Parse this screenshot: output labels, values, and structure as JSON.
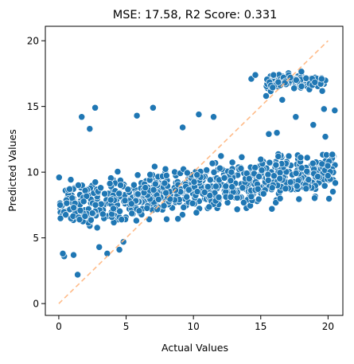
{
  "chart_data": {
    "type": "scatter",
    "title": "MSE: 17.58, R2 Score: 0.331",
    "xlabel": "Actual Values",
    "ylabel": "Predicted Values",
    "xlim": [
      -1.0,
      21.1
    ],
    "ylim": [
      -0.9,
      21.1
    ],
    "x_ticks": [
      0,
      5,
      10,
      15,
      20
    ],
    "y_ticks": [
      0,
      5,
      10,
      15,
      20
    ],
    "grid": false,
    "legend": "none",
    "colors": {
      "points": "#1f77b4",
      "point_edge": "#ffffff",
      "reference_line": "#ffbb88"
    },
    "reference_line": {
      "from": [
        0,
        0
      ],
      "to": [
        20,
        20
      ],
      "style": "dashed"
    },
    "point_count": 900,
    "series": [
      {
        "x": [
          0.1,
          0.4,
          0.3,
          1.1,
          1.4,
          1.7,
          2.3,
          2.7,
          3.0,
          3.6,
          4.5,
          4.8,
          5.8,
          7.0,
          9.2,
          10.4,
          11.5,
          14.3,
          14.6,
          16.2,
          15.6,
          17.6,
          18.9,
          19.7,
          20.5,
          19.8,
          16.8,
          17.2,
          16.6,
          15.4
        ],
        "y": [
          7.5,
          3.6,
          3.8,
          3.7,
          2.2,
          14.2,
          13.3,
          14.9,
          4.3,
          3.8,
          4.1,
          4.7,
          14.3,
          14.9,
          13.4,
          14.4,
          14.2,
          17.1,
          17.4,
          13.0,
          12.9,
          14.2,
          13.6,
          14.8,
          14.7,
          12.7,
          16.8,
          17.2,
          15.5,
          15.8
        ]
      }
    ]
  }
}
